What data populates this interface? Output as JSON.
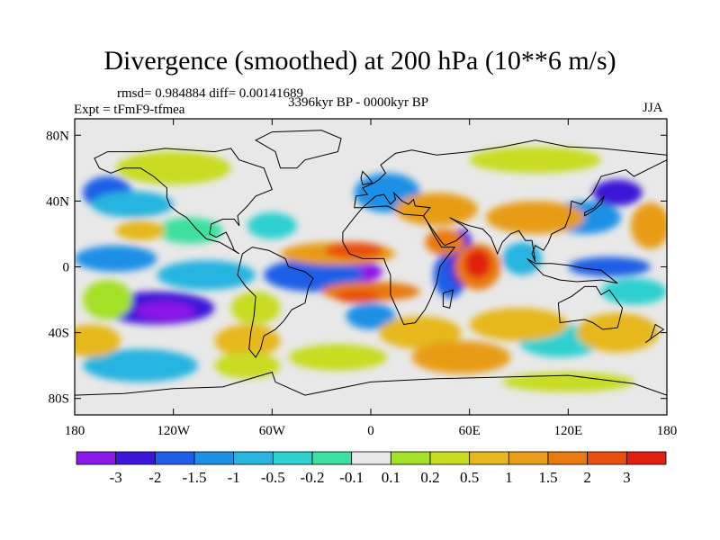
{
  "title": "Divergence (smoothed) at 200 hPa (10**6 m/s)",
  "stats": "rmsd= 0.984884 diff= 0.00141689",
  "period": "3396kyr BP - 0000kyr BP",
  "experiment": "Expt = tFmF9-tfmea",
  "season": "JJA",
  "map": {
    "lat_ticks": [
      {
        "label": "80N",
        "lat": 80
      },
      {
        "label": "40N",
        "lat": 40
      },
      {
        "label": "0",
        "lat": 0
      },
      {
        "label": "40S",
        "lat": -40
      },
      {
        "label": "80S",
        "lat": -80
      }
    ],
    "lon_ticks": [
      {
        "label": "180",
        "lon": -180
      },
      {
        "label": "120W",
        "lon": -120
      },
      {
        "label": "60W",
        "lon": -60
      },
      {
        "label": "0",
        "lon": 0
      },
      {
        "label": "60E",
        "lon": 60
      },
      {
        "label": "120E",
        "lon": 120
      },
      {
        "label": "180",
        "lon": 180
      }
    ],
    "lon_range": [
      -180,
      180
    ],
    "lat_range": [
      -90,
      90
    ]
  },
  "colorbar": {
    "colors": [
      "#8a18e8",
      "#3c16d8",
      "#1f5ee6",
      "#1e90e6",
      "#28b4e0",
      "#2ed0d0",
      "#3ce0a0",
      "#e8e8e8",
      "#a4e028",
      "#c8dc22",
      "#e6b81e",
      "#e89c18",
      "#e87a10",
      "#e85010",
      "#e02010"
    ],
    "labels": [
      "-3",
      "-2",
      "-1.5",
      "-1",
      "-0.5",
      "-0.2",
      "-0.1",
      "0.1",
      "0.2",
      "0.5",
      "1",
      "1.5",
      "2",
      "3"
    ]
  },
  "field_blobs": [
    {
      "lon": -15,
      "lat": -3,
      "rx": 22,
      "ry": 8,
      "cls": 0
    },
    {
      "lon": -18,
      "lat": -3,
      "rx": 12,
      "ry": 5,
      "cls": 0
    },
    {
      "lon": -35,
      "lat": -5,
      "rx": 30,
      "ry": 10,
      "cls": 2
    },
    {
      "lon": -130,
      "lat": -25,
      "rx": 35,
      "ry": 10,
      "cls": 1
    },
    {
      "lon": -125,
      "lat": -27,
      "rx": 18,
      "ry": 6,
      "cls": 0
    },
    {
      "lon": -155,
      "lat": 5,
      "rx": 25,
      "ry": 8,
      "cls": 3
    },
    {
      "lon": -100,
      "lat": -5,
      "rx": 30,
      "ry": 9,
      "cls": 4
    },
    {
      "lon": -160,
      "lat": 45,
      "rx": 15,
      "ry": 10,
      "cls": 2
    },
    {
      "lon": -145,
      "lat": 38,
      "rx": 25,
      "ry": 8,
      "cls": 4
    },
    {
      "lon": -140,
      "lat": -60,
      "rx": 35,
      "ry": 10,
      "cls": 4
    },
    {
      "lon": -110,
      "lat": 22,
      "rx": 20,
      "ry": 8,
      "cls": 6
    },
    {
      "lon": -60,
      "lat": 25,
      "rx": 15,
      "ry": 8,
      "cls": 5
    },
    {
      "lon": 10,
      "lat": 45,
      "rx": 20,
      "ry": 12,
      "cls": 3
    },
    {
      "lon": 48,
      "lat": -5,
      "rx": 10,
      "ry": 14,
      "cls": 2
    },
    {
      "lon": 55,
      "lat": 5,
      "rx": 8,
      "ry": 18,
      "cls": 1
    },
    {
      "lon": 92,
      "lat": 5,
      "rx": 12,
      "ry": 10,
      "cls": 4
    },
    {
      "lon": 145,
      "lat": 0,
      "rx": 25,
      "ry": 6,
      "cls": 2
    },
    {
      "lon": 130,
      "lat": 30,
      "rx": 22,
      "ry": 10,
      "cls": 3
    },
    {
      "lon": 150,
      "lat": 45,
      "rx": 15,
      "ry": 8,
      "cls": 1
    },
    {
      "lon": 115,
      "lat": -45,
      "rx": 25,
      "ry": 10,
      "cls": 5
    },
    {
      "lon": 160,
      "lat": -15,
      "rx": 20,
      "ry": 8,
      "cls": 5
    },
    {
      "lon": 0,
      "lat": -30,
      "rx": 15,
      "ry": 8,
      "cls": 3
    },
    {
      "lon": -160,
      "lat": -20,
      "rx": 15,
      "ry": 12,
      "cls": 8
    },
    {
      "lon": -170,
      "lat": -45,
      "rx": 18,
      "ry": 10,
      "cls": 10
    },
    {
      "lon": -70,
      "lat": -25,
      "rx": 15,
      "ry": 10,
      "cls": 9
    },
    {
      "lon": -75,
      "lat": -45,
      "rx": 20,
      "ry": 10,
      "cls": 10
    },
    {
      "lon": -75,
      "lat": -60,
      "rx": 20,
      "ry": 8,
      "cls": 9
    },
    {
      "lon": -20,
      "lat": 8,
      "rx": 35,
      "ry": 7,
      "cls": 11
    },
    {
      "lon": -10,
      "lat": 10,
      "rx": 18,
      "ry": 5,
      "cls": 13
    },
    {
      "lon": 0,
      "lat": -15,
      "rx": 30,
      "ry": 6,
      "cls": 12
    },
    {
      "lon": -8,
      "lat": -18,
      "rx": 14,
      "ry": 4,
      "cls": 13
    },
    {
      "lon": 45,
      "lat": 15,
      "rx": 12,
      "ry": 8,
      "cls": 12
    },
    {
      "lon": 65,
      "lat": 0,
      "rx": 14,
      "ry": 14,
      "cls": 12
    },
    {
      "lon": 65,
      "lat": 2,
      "rx": 8,
      "ry": 9,
      "cls": 14
    },
    {
      "lon": 30,
      "lat": -40,
      "rx": 25,
      "ry": 10,
      "cls": 10
    },
    {
      "lon": 55,
      "lat": -55,
      "rx": 30,
      "ry": 10,
      "cls": 11
    },
    {
      "lon": 90,
      "lat": -35,
      "rx": 30,
      "ry": 10,
      "cls": 10
    },
    {
      "lon": 100,
      "lat": 30,
      "rx": 30,
      "ry": 10,
      "cls": 11
    },
    {
      "lon": 40,
      "lat": 35,
      "rx": 25,
      "ry": 10,
      "cls": 11
    },
    {
      "lon": -120,
      "lat": 60,
      "rx": 35,
      "ry": 10,
      "cls": 9
    },
    {
      "lon": 100,
      "lat": 65,
      "rx": 40,
      "ry": 8,
      "cls": 9
    },
    {
      "lon": 170,
      "lat": 25,
      "rx": 12,
      "ry": 14,
      "cls": 11
    },
    {
      "lon": -140,
      "lat": 22,
      "rx": 15,
      "ry": 6,
      "cls": 10
    },
    {
      "lon": 150,
      "lat": -40,
      "rx": 25,
      "ry": 12,
      "cls": 10
    },
    {
      "lon": -20,
      "lat": -55,
      "rx": 30,
      "ry": 8,
      "cls": 9
    },
    {
      "lon": 120,
      "lat": -70,
      "rx": 40,
      "ry": 6,
      "cls": 9
    }
  ],
  "continents": [
    {
      "name": "north-america",
      "pts": [
        [
          -168,
          66
        ],
        [
          -160,
          70
        ],
        [
          -140,
          70
        ],
        [
          -125,
          72
        ],
        [
          -95,
          70
        ],
        [
          -85,
          72
        ],
        [
          -80,
          65
        ],
        [
          -65,
          60
        ],
        [
          -60,
          47
        ],
        [
          -70,
          43
        ],
        [
          -75,
          37
        ],
        [
          -81,
          31
        ],
        [
          -80,
          25
        ],
        [
          -83,
          29
        ],
        [
          -90,
          29
        ],
        [
          -97,
          26
        ],
        [
          -98,
          20
        ],
        [
          -94,
          18
        ],
        [
          -88,
          21
        ],
        [
          -85,
          15
        ],
        [
          -83,
          10
        ],
        [
          -80,
          8
        ],
        [
          -85,
          11
        ],
        [
          -92,
          15
        ],
        [
          -100,
          17
        ],
        [
          -106,
          23
        ],
        [
          -112,
          30
        ],
        [
          -117,
          33
        ],
        [
          -122,
          37
        ],
        [
          -124,
          42
        ],
        [
          -124,
          48
        ],
        [
          -132,
          55
        ],
        [
          -140,
          60
        ],
        [
          -150,
          60
        ],
        [
          -158,
          57
        ],
        [
          -165,
          60
        ],
        [
          -168,
          66
        ]
      ]
    },
    {
      "name": "greenland",
      "pts": [
        [
          -55,
          60
        ],
        [
          -45,
          60
        ],
        [
          -40,
          65
        ],
        [
          -20,
          70
        ],
        [
          -18,
          78
        ],
        [
          -30,
          83
        ],
        [
          -60,
          82
        ],
        [
          -70,
          77
        ],
        [
          -58,
          70
        ],
        [
          -55,
          60
        ]
      ]
    },
    {
      "name": "south-america",
      "pts": [
        [
          -78,
          8
        ],
        [
          -72,
          12
        ],
        [
          -62,
          10
        ],
        [
          -52,
          5
        ],
        [
          -50,
          0
        ],
        [
          -40,
          -3
        ],
        [
          -35,
          -7
        ],
        [
          -38,
          -13
        ],
        [
          -40,
          -22
        ],
        [
          -48,
          -26
        ],
        [
          -53,
          -33
        ],
        [
          -58,
          -38
        ],
        [
          -65,
          -42
        ],
        [
          -67,
          -50
        ],
        [
          -70,
          -55
        ],
        [
          -74,
          -50
        ],
        [
          -73,
          -40
        ],
        [
          -71,
          -30
        ],
        [
          -70,
          -18
        ],
        [
          -76,
          -12
        ],
        [
          -81,
          -5
        ],
        [
          -80,
          0
        ],
        [
          -78,
          8
        ]
      ]
    },
    {
      "name": "eurasia",
      "pts": [
        [
          -10,
          36
        ],
        [
          -9,
          43
        ],
        [
          -2,
          44
        ],
        [
          -5,
          48
        ],
        [
          2,
          51
        ],
        [
          5,
          53
        ],
        [
          9,
          57
        ],
        [
          6,
          62
        ],
        [
          15,
          69
        ],
        [
          25,
          71
        ],
        [
          40,
          68
        ],
        [
          60,
          70
        ],
        [
          80,
          73
        ],
        [
          100,
          77
        ],
        [
          120,
          73
        ],
        [
          140,
          72
        ],
        [
          160,
          70
        ],
        [
          180,
          68
        ],
        [
          180,
          65
        ],
        [
          170,
          60
        ],
        [
          160,
          55
        ],
        [
          155,
          59
        ],
        [
          140,
          55
        ],
        [
          135,
          45
        ],
        [
          128,
          38
        ],
        [
          122,
          40
        ],
        [
          121,
          32
        ],
        [
          118,
          24
        ],
        [
          110,
          20
        ],
        [
          108,
          15
        ],
        [
          105,
          10
        ],
        [
          100,
          13
        ],
        [
          98,
          8
        ],
        [
          100,
          3
        ],
        [
          98,
          16
        ],
        [
          94,
          16
        ],
        [
          90,
          22
        ],
        [
          85,
          20
        ],
        [
          80,
          15
        ],
        [
          77,
          8
        ],
        [
          73,
          18
        ],
        [
          68,
          23
        ],
        [
          60,
          25
        ],
        [
          57,
          26
        ],
        [
          52,
          28
        ],
        [
          48,
          30
        ],
        [
          56,
          25
        ],
        [
          59,
          22
        ],
        [
          52,
          16
        ],
        [
          45,
          13
        ],
        [
          43,
          15
        ],
        [
          38,
          22
        ],
        [
          34,
          28
        ],
        [
          32,
          31
        ],
        [
          36,
          36
        ],
        [
          27,
          37
        ],
        [
          26,
          41
        ],
        [
          23,
          38
        ],
        [
          19,
          40
        ],
        [
          14,
          45
        ],
        [
          15,
          41
        ],
        [
          12,
          38
        ],
        [
          8,
          44
        ],
        [
          3,
          43
        ],
        [
          -5,
          36
        ],
        [
          -10,
          36
        ]
      ]
    },
    {
      "name": "africa",
      "pts": [
        [
          -17,
          21
        ],
        [
          -10,
          30
        ],
        [
          -5,
          36
        ],
        [
          10,
          37
        ],
        [
          20,
          32
        ],
        [
          32,
          31
        ],
        [
          34,
          28
        ],
        [
          38,
          20
        ],
        [
          43,
          12
        ],
        [
          51,
          12
        ],
        [
          42,
          0
        ],
        [
          40,
          -10
        ],
        [
          36,
          -20
        ],
        [
          33,
          -26
        ],
        [
          27,
          -34
        ],
        [
          20,
          -35
        ],
        [
          17,
          -28
        ],
        [
          12,
          -17
        ],
        [
          12,
          -5
        ],
        [
          9,
          2
        ],
        [
          8,
          5
        ],
        [
          -5,
          5
        ],
        [
          -13,
          8
        ],
        [
          -17,
          15
        ],
        [
          -17,
          21
        ]
      ]
    },
    {
      "name": "madagascar",
      "pts": [
        [
          44,
          -16
        ],
        [
          50,
          -14
        ],
        [
          48,
          -25
        ],
        [
          44,
          -24
        ],
        [
          44,
          -16
        ]
      ]
    },
    {
      "name": "australia",
      "pts": [
        [
          114,
          -22
        ],
        [
          122,
          -18
        ],
        [
          130,
          -12
        ],
        [
          137,
          -12
        ],
        [
          140,
          -17
        ],
        [
          145,
          -14
        ],
        [
          153,
          -25
        ],
        [
          150,
          -37
        ],
        [
          141,
          -38
        ],
        [
          135,
          -34
        ],
        [
          130,
          -32
        ],
        [
          115,
          -34
        ],
        [
          114,
          -22
        ]
      ]
    },
    {
      "name": "antarctica",
      "pts": [
        [
          -180,
          -78
        ],
        [
          -150,
          -77
        ],
        [
          -120,
          -74
        ],
        [
          -90,
          -73
        ],
        [
          -60,
          -64
        ],
        [
          -58,
          -70
        ],
        [
          -40,
          -78
        ],
        [
          0,
          -70
        ],
        [
          40,
          -68
        ],
        [
          80,
          -67
        ],
        [
          120,
          -66
        ],
        [
          160,
          -71
        ],
        [
          180,
          -78
        ]
      ],
      "open": true
    },
    {
      "name": "indonesia",
      "pts": [
        [
          95,
          5
        ],
        [
          105,
          -5
        ],
        [
          115,
          -8
        ],
        [
          125,
          -9
        ],
        [
          140,
          -8
        ],
        [
          150,
          -10
        ],
        [
          140,
          -2
        ],
        [
          130,
          -1
        ],
        [
          120,
          1
        ],
        [
          110,
          2
        ],
        [
          100,
          2
        ],
        [
          95,
          5
        ]
      ]
    },
    {
      "name": "japan",
      "pts": [
        [
          130,
          31
        ],
        [
          135,
          34
        ],
        [
          140,
          38
        ],
        [
          142,
          43
        ],
        [
          140,
          41
        ],
        [
          136,
          36
        ],
        [
          130,
          33
        ],
        [
          130,
          31
        ]
      ]
    },
    {
      "name": "uk",
      "pts": [
        [
          -5,
          50
        ],
        [
          1,
          51
        ],
        [
          -2,
          55
        ],
        [
          -5,
          58
        ],
        [
          -6,
          54
        ],
        [
          -5,
          50
        ]
      ]
    },
    {
      "name": "new-zealand",
      "pts": [
        [
          167,
          -46
        ],
        [
          174,
          -41
        ],
        [
          178,
          -38
        ],
        [
          173,
          -35
        ],
        [
          170,
          -44
        ],
        [
          167,
          -46
        ]
      ]
    }
  ]
}
